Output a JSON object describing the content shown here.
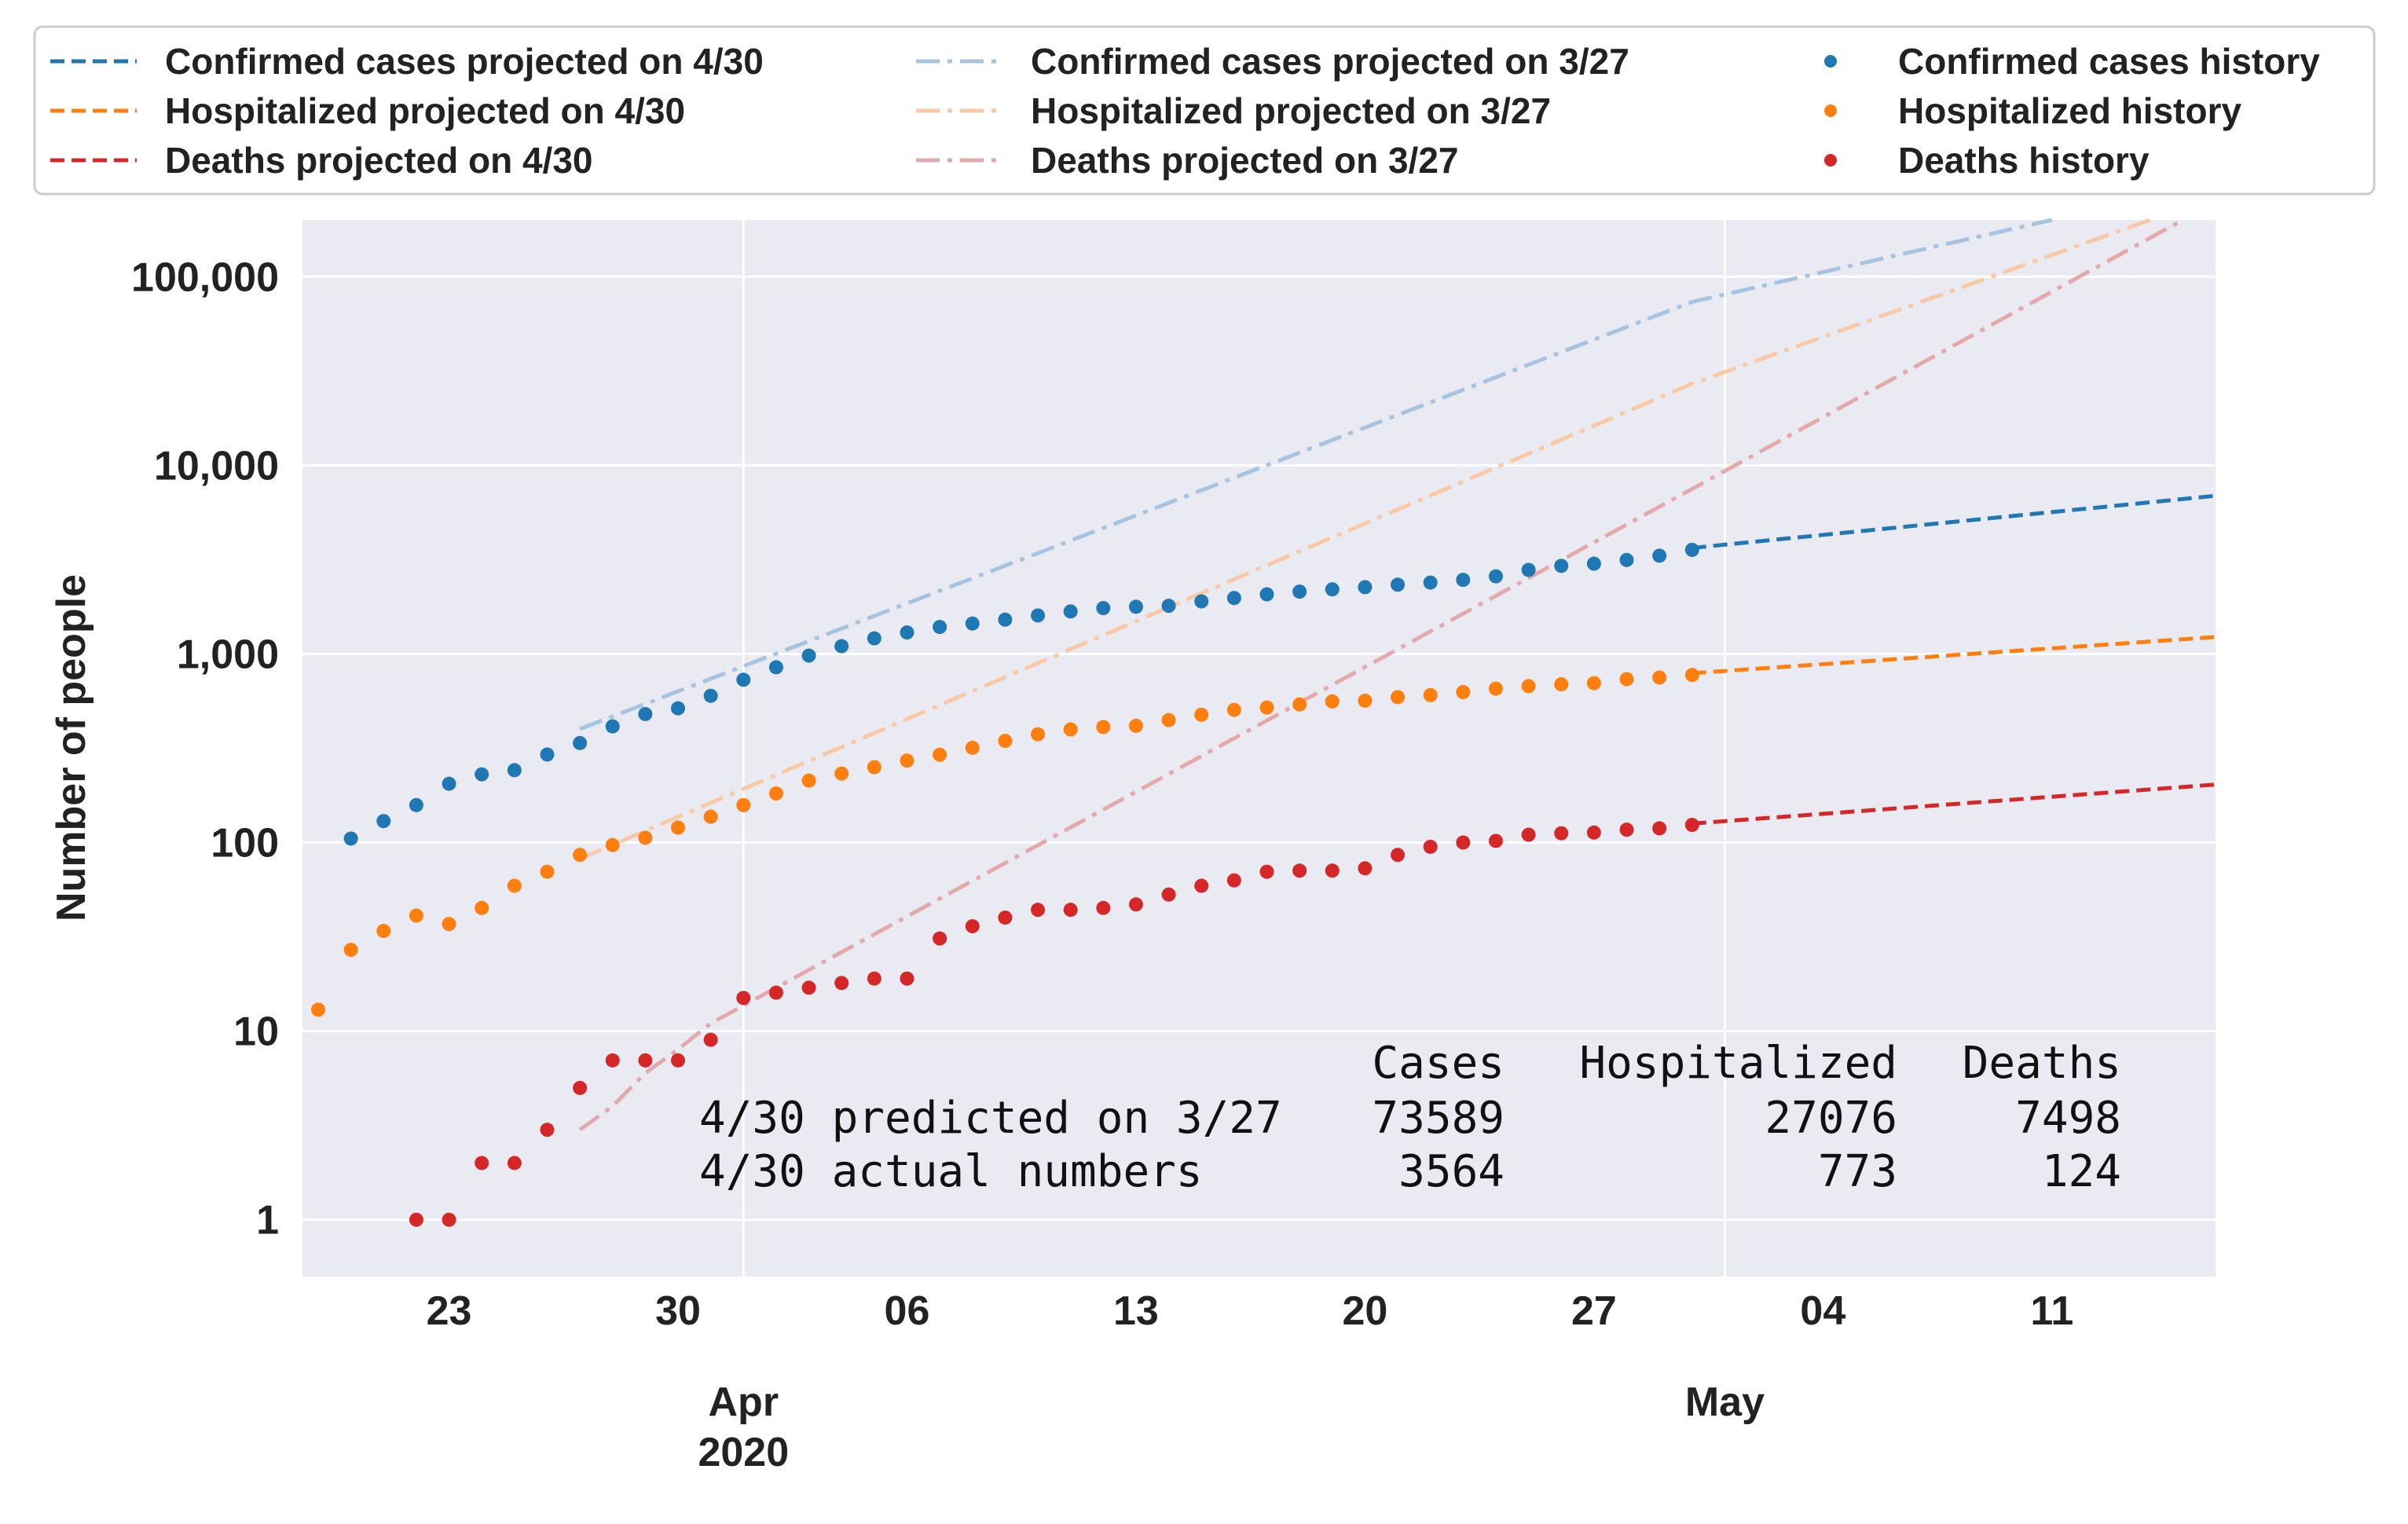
{
  "chart_data": {
    "type": "scatter",
    "title": "",
    "xlabel": "",
    "ylabel": "Number of people",
    "yscale": "log",
    "ylim": [
      0.5,
      200000
    ],
    "xlim": [
      "2020-03-19",
      "2020-05-16"
    ],
    "grid": true,
    "legend_position": "top",
    "y_ticks": [
      "1",
      "10",
      "100",
      "1,000",
      "10,000",
      "100,000"
    ],
    "x_ticks": [
      {
        "date": "2020-03-23",
        "label": "23"
      },
      {
        "date": "2020-03-30",
        "label": "30"
      },
      {
        "date": "2020-04-06",
        "label": "06"
      },
      {
        "date": "2020-04-13",
        "label": "13"
      },
      {
        "date": "2020-04-20",
        "label": "20"
      },
      {
        "date": "2020-04-27",
        "label": "27"
      },
      {
        "date": "2020-05-04",
        "label": "04"
      },
      {
        "date": "2020-05-11",
        "label": "11"
      }
    ],
    "x_month_labels": [
      {
        "date": "2020-04-01",
        "label": "Apr",
        "sublabel": "2020"
      },
      {
        "date": "2020-05-01",
        "label": "May",
        "sublabel": ""
      }
    ],
    "series": [
      {
        "name": "Confirmed cases history",
        "kind": "dots",
        "color": "#1f77b4",
        "x": [
          "2020-03-20",
          "2020-03-21",
          "2020-03-22",
          "2020-03-23",
          "2020-03-24",
          "2020-03-25",
          "2020-03-26",
          "2020-03-27",
          "2020-03-28",
          "2020-03-29",
          "2020-03-30",
          "2020-03-31",
          "2020-04-01",
          "2020-04-02",
          "2020-04-03",
          "2020-04-04",
          "2020-04-05",
          "2020-04-06",
          "2020-04-07",
          "2020-04-08",
          "2020-04-09",
          "2020-04-10",
          "2020-04-11",
          "2020-04-12",
          "2020-04-13",
          "2020-04-14",
          "2020-04-15",
          "2020-04-16",
          "2020-04-17",
          "2020-04-18",
          "2020-04-19",
          "2020-04-20",
          "2020-04-21",
          "2020-04-22",
          "2020-04-23",
          "2020-04-24",
          "2020-04-25",
          "2020-04-26",
          "2020-04-27",
          "2020-04-28",
          "2020-04-29",
          "2020-04-30"
        ],
        "y": [
          105,
          130,
          158,
          205,
          230,
          242,
          293,
          337,
          413,
          480,
          515,
          600,
          730,
          850,
          980,
          1100,
          1210,
          1300,
          1390,
          1450,
          1520,
          1600,
          1680,
          1750,
          1780,
          1800,
          1900,
          1980,
          2070,
          2140,
          2200,
          2260,
          2330,
          2390,
          2470,
          2580,
          2790,
          2930,
          3010,
          3150,
          3320,
          3564
        ]
      },
      {
        "name": "Hospitalized history",
        "kind": "dots",
        "color": "#ff7f0e",
        "x": [
          "2020-03-19",
          "2020-03-20",
          "2020-03-21",
          "2020-03-22",
          "2020-03-23",
          "2020-03-24",
          "2020-03-25",
          "2020-03-26",
          "2020-03-27",
          "2020-03-28",
          "2020-03-29",
          "2020-03-30",
          "2020-03-31",
          "2020-04-01",
          "2020-04-02",
          "2020-04-03",
          "2020-04-04",
          "2020-04-05",
          "2020-04-06",
          "2020-04-07",
          "2020-04-08",
          "2020-04-09",
          "2020-04-10",
          "2020-04-11",
          "2020-04-12",
          "2020-04-13",
          "2020-04-14",
          "2020-04-15",
          "2020-04-16",
          "2020-04-17",
          "2020-04-18",
          "2020-04-19",
          "2020-04-20",
          "2020-04-21",
          "2020-04-22",
          "2020-04-23",
          "2020-04-24",
          "2020-04-25",
          "2020-04-26",
          "2020-04-27",
          "2020-04-28",
          "2020-04-29",
          "2020-04-30"
        ],
        "y": [
          13,
          27,
          34,
          41,
          37,
          45,
          59,
          70,
          86,
          97,
          106,
          120,
          137,
          158,
          182,
          213,
          232,
          251,
          272,
          292,
          318,
          346,
          375,
          398,
          410,
          416,
          446,
          476,
          505,
          520,
          540,
          560,
          565,
          590,
          605,
          628,
          655,
          675,
          690,
          700,
          735,
          750,
          773
        ]
      },
      {
        "name": "Deaths history",
        "kind": "dots",
        "color": "#d62728",
        "x": [
          "2020-03-22",
          "2020-03-23",
          "2020-03-24",
          "2020-03-25",
          "2020-03-26",
          "2020-03-27",
          "2020-03-28",
          "2020-03-29",
          "2020-03-30",
          "2020-03-31",
          "2020-04-01",
          "2020-04-02",
          "2020-04-03",
          "2020-04-04",
          "2020-04-05",
          "2020-04-06",
          "2020-04-07",
          "2020-04-08",
          "2020-04-09",
          "2020-04-10",
          "2020-04-11",
          "2020-04-12",
          "2020-04-13",
          "2020-04-14",
          "2020-04-15",
          "2020-04-16",
          "2020-04-17",
          "2020-04-18",
          "2020-04-19",
          "2020-04-20",
          "2020-04-21",
          "2020-04-22",
          "2020-04-23",
          "2020-04-24",
          "2020-04-25",
          "2020-04-26",
          "2020-04-27",
          "2020-04-28",
          "2020-04-29",
          "2020-04-30"
        ],
        "y": [
          1,
          1,
          2,
          2,
          3,
          5,
          7,
          7,
          7,
          9,
          15,
          16,
          17,
          18,
          19,
          19,
          31,
          36,
          40,
          44,
          44,
          45,
          47,
          53,
          59,
          63,
          70,
          71,
          71,
          73,
          86,
          95,
          100,
          102,
          110,
          112,
          113,
          117,
          119,
          124
        ]
      },
      {
        "name": "Confirmed cases projected on 4/30",
        "kind": "dashed",
        "color": "#1f77b4",
        "x": [
          "2020-04-30",
          "2020-05-16"
        ],
        "y": [
          3650,
          6900
        ]
      },
      {
        "name": "Hospitalized projected on 4/30",
        "kind": "dashed",
        "color": "#ff7f0e",
        "x": [
          "2020-04-30",
          "2020-05-16"
        ],
        "y": [
          790,
          1230
        ]
      },
      {
        "name": "Deaths projected on 4/30",
        "kind": "dashed",
        "color": "#d62728",
        "x": [
          "2020-04-30",
          "2020-05-16"
        ],
        "y": [
          126,
          203
        ]
      },
      {
        "name": "Confirmed cases projected on 3/27",
        "kind": "dashdot",
        "color": "#a6c4e0",
        "x": [
          "2020-03-27",
          "2020-04-30",
          "2020-05-11"
        ],
        "y": [
          400,
          73589,
          200000
        ]
      },
      {
        "name": "Hospitalized projected on 3/27",
        "kind": "dashdot",
        "color": "#f8c9a4",
        "x": [
          "2020-03-27",
          "2020-04-30",
          "2020-05-14"
        ],
        "y": [
          82,
          27076,
          200000
        ]
      },
      {
        "name": "Deaths projected on 3/27",
        "kind": "dashdot",
        "color": "#e4a9aa",
        "x": [
          "2020-03-27",
          "2020-03-28",
          "2020-03-29",
          "2020-03-30",
          "2020-03-31",
          "2020-04-30",
          "2020-05-15"
        ],
        "y": [
          3,
          4,
          6,
          8,
          11,
          7498,
          200000
        ]
      }
    ],
    "annotation_table": {
      "headers": [
        "",
        "Cases",
        "Hospitalized",
        "Deaths"
      ],
      "rows": [
        [
          "4/30 predicted on 3/27",
          "73589",
          "27076",
          "7498"
        ],
        [
          "4/30 actual numbers",
          "3564",
          "773",
          "124"
        ]
      ]
    }
  }
}
